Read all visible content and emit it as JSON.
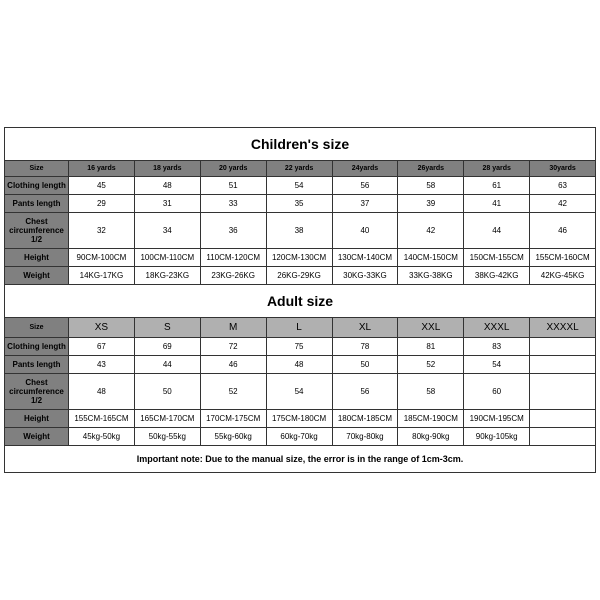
{
  "children": {
    "title": "Children's size",
    "headers": [
      "Size",
      "16 yards",
      "18 yards",
      "20 yards",
      "22 yards",
      "24yards",
      "26yards",
      "28 yards",
      "30yards"
    ],
    "rows": [
      {
        "label": "Clothing length",
        "cells": [
          "45",
          "48",
          "51",
          "54",
          "56",
          "58",
          "61",
          "63"
        ]
      },
      {
        "label": "Pants length",
        "cells": [
          "29",
          "31",
          "33",
          "35",
          "37",
          "39",
          "41",
          "42"
        ]
      },
      {
        "label": "Chest circumference 1/2",
        "cells": [
          "32",
          "34",
          "36",
          "38",
          "40",
          "42",
          "44",
          "46"
        ]
      },
      {
        "label": "Height",
        "cells": [
          "90CM-100CM",
          "100CM-110CM",
          "110CM-120CM",
          "120CM-130CM",
          "130CM-140CM",
          "140CM-150CM",
          "150CM-155CM",
          "155CM-160CM"
        ]
      },
      {
        "label": "Weight",
        "cells": [
          "14KG-17KG",
          "18KG-23KG",
          "23KG-26KG",
          "26KG-29KG",
          "30KG-33KG",
          "33KG-38KG",
          "38KG-42KG",
          "42KG-45KG"
        ]
      }
    ]
  },
  "adult": {
    "title": "Adult size",
    "headers": [
      "Size",
      "XS",
      "S",
      "M",
      "L",
      "XL",
      "XXL",
      "XXXL",
      "XXXXL"
    ],
    "rows": [
      {
        "label": "Clothing length",
        "cells": [
          "67",
          "69",
          "72",
          "75",
          "78",
          "81",
          "83",
          ""
        ]
      },
      {
        "label": "Pants length",
        "cells": [
          "43",
          "44",
          "46",
          "48",
          "50",
          "52",
          "54",
          ""
        ]
      },
      {
        "label": "Chest circumference 1/2",
        "cells": [
          "48",
          "50",
          "52",
          "54",
          "56",
          "58",
          "60",
          ""
        ]
      },
      {
        "label": "Height",
        "cells": [
          "155CM-165CM",
          "165CM-170CM",
          "170CM-175CM",
          "175CM-180CM",
          "180CM-185CM",
          "185CM-190CM",
          "190CM-195CM",
          ""
        ]
      },
      {
        "label": "Weight",
        "cells": [
          "45kg-50kg",
          "50kg-55kg",
          "55kg-60kg",
          "60kg-70kg",
          "70kg-80kg",
          "80kg-90kg",
          "90kg-105kg",
          ""
        ]
      }
    ]
  },
  "note": "Important note: Due to the manual size, the error is in the range of 1cm-3cm.",
  "style": {
    "header_bg": "#808080",
    "adult_header_bg": "#b0b0b0",
    "border_color": "#333333",
    "bg": "#ffffff",
    "title_fontsize": 14,
    "data_fontsize": 8,
    "header_fontsize": 7,
    "note_fontsize": 9,
    "cols": 9
  }
}
